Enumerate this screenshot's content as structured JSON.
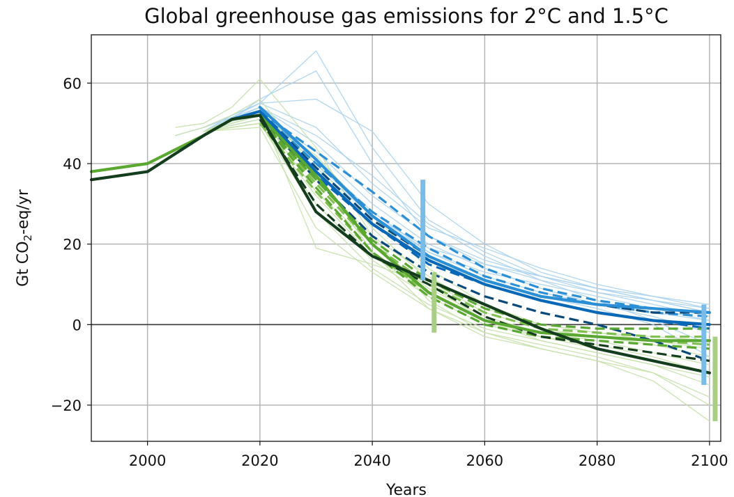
{
  "chart_data": {
    "type": "line",
    "title": "Global greenhouse gas emissions for 2°C and 1.5°C",
    "xlabel": "Years",
    "ylabel_main": "Gt CO",
    "ylabel_sub": "2",
    "ylabel_tail": "-eq/yr",
    "xlim": [
      1990,
      2102
    ],
    "ylim": [
      -29,
      72
    ],
    "xticks": [
      2000,
      2020,
      2040,
      2060,
      2080,
      2100
    ],
    "yticks": [
      -20,
      0,
      20,
      40,
      60
    ],
    "ytick_labels": [
      "−20",
      "0",
      "20",
      "40",
      "60"
    ],
    "grid": true,
    "zero_line": true,
    "colors": {
      "light_blue": "#a9d2f0",
      "mid_blue": "#2b8fd6",
      "dark_blue": "#0868b8",
      "navy": "#0a4a7a",
      "light_green": "#c5e0a8",
      "mid_green": "#7fbf4f",
      "green": "#5aa832",
      "dark_green": "#143d1e",
      "range_blue": "#79bce8",
      "range_green": "#a8cf84"
    },
    "series": [
      {
        "style": "thin",
        "color": "light_blue",
        "x": [
          2005,
          2010,
          2015,
          2020,
          2030,
          2040,
          2050,
          2060,
          2070,
          2080,
          2090,
          2100
        ],
        "y": [
          47,
          49,
          52,
          55,
          68,
          44,
          26,
          18,
          12,
          8,
          5,
          2
        ]
      },
      {
        "style": "thin",
        "color": "light_blue",
        "x": [
          2010,
          2015,
          2020,
          2030,
          2040,
          2050,
          2060,
          2070,
          2080,
          2090,
          2100
        ],
        "y": [
          48,
          51,
          56,
          63,
          40,
          22,
          15,
          11,
          8,
          6,
          4
        ]
      },
      {
        "style": "thin",
        "color": "light_blue",
        "x": [
          2010,
          2015,
          2020,
          2030,
          2040,
          2050,
          2060,
          2070,
          2080,
          2090,
          2100
        ],
        "y": [
          48,
          52,
          55,
          56,
          48,
          30,
          20,
          13,
          9,
          6,
          3
        ]
      },
      {
        "style": "thin",
        "color": "light_blue",
        "x": [
          2010,
          2020,
          2030,
          2040,
          2050,
          2060,
          2070,
          2080,
          2090,
          2100
        ],
        "y": [
          49,
          54,
          45,
          32,
          22,
          16,
          12,
          9,
          6,
          3
        ]
      },
      {
        "style": "thin",
        "color": "light_blue",
        "x": [
          2010,
          2020,
          2030,
          2040,
          2050,
          2060,
          2070,
          2080,
          2090,
          2100
        ],
        "y": [
          48,
          53,
          41,
          28,
          18,
          13,
          10,
          7,
          4,
          1
        ]
      },
      {
        "style": "thin",
        "color": "light_blue",
        "x": [
          2010,
          2020,
          2030,
          2040,
          2050,
          2060,
          2070,
          2080,
          2090,
          2100
        ],
        "y": [
          48,
          52,
          43,
          30,
          20,
          14,
          9,
          5,
          2,
          -2
        ]
      },
      {
        "style": "thin",
        "color": "light_blue",
        "x": [
          2010,
          2020,
          2030,
          2040,
          2050,
          2060,
          2070,
          2080,
          2090,
          2100
        ],
        "y": [
          48,
          54,
          47,
          37,
          25,
          17,
          11,
          6,
          1,
          -5
        ]
      },
      {
        "style": "thin",
        "color": "light_blue",
        "x": [
          2010,
          2020,
          2030,
          2040,
          2050,
          2060,
          2070,
          2080,
          2090,
          2100
        ],
        "y": [
          48,
          53,
          40,
          27,
          19,
          15,
          12,
          9,
          7,
          5
        ]
      },
      {
        "style": "thin",
        "color": "light_blue",
        "x": [
          2010,
          2020,
          2030,
          2040,
          2050,
          2060,
          2070,
          2080,
          2090,
          2100
        ],
        "y": [
          48,
          52,
          38,
          25,
          16,
          11,
          7,
          4,
          0,
          -8
        ]
      },
      {
        "style": "thin",
        "color": "light_blue",
        "x": [
          2010,
          2020,
          2030,
          2040,
          2050,
          2060,
          2070,
          2080,
          2090,
          2100
        ],
        "y": [
          48,
          55,
          49,
          35,
          24,
          19,
          14,
          10,
          7,
          4
        ]
      },
      {
        "style": "thin",
        "color": "light_blue",
        "x": [
          2010,
          2020,
          2030,
          2040,
          2050,
          2060,
          2070,
          2080,
          2090,
          2100
        ],
        "y": [
          48,
          51,
          39,
          27,
          18,
          12,
          8,
          5,
          3,
          1
        ]
      },
      {
        "style": "thin",
        "color": "light_green",
        "x": [
          2005,
          2010,
          2015,
          2020,
          2030,
          2040,
          2050,
          2060,
          2070,
          2080,
          2090,
          2100
        ],
        "y": [
          49,
          50,
          54,
          61,
          44,
          22,
          6,
          -2,
          -5,
          -8,
          -12,
          -18
        ]
      },
      {
        "style": "thin",
        "color": "light_green",
        "x": [
          2005,
          2010,
          2015,
          2020,
          2030,
          2040,
          2050,
          2060,
          2070,
          2080,
          2090,
          2100
        ],
        "y": [
          47,
          49,
          52,
          56,
          38,
          18,
          4,
          -3,
          -6,
          -9,
          -14,
          -24
        ]
      },
      {
        "style": "thin",
        "color": "light_green",
        "x": [
          2010,
          2015,
          2020,
          2030,
          2040,
          2050,
          2060,
          2070,
          2080,
          2090,
          2100
        ],
        "y": [
          48,
          51,
          53,
          19,
          15,
          10,
          1,
          -3,
          -6,
          -9,
          -12
        ]
      },
      {
        "style": "thin",
        "color": "light_green",
        "x": [
          2010,
          2020,
          2030,
          2040,
          2050,
          2060,
          2070,
          2080,
          2090,
          2100
        ],
        "y": [
          48,
          50,
          28,
          14,
          5,
          -1,
          -4,
          -7,
          -10,
          -15
        ]
      },
      {
        "style": "thin",
        "color": "light_green",
        "x": [
          2010,
          2020,
          2030,
          2040,
          2050,
          2060,
          2070,
          2080,
          2090,
          2100
        ],
        "y": [
          48,
          52,
          33,
          20,
          9,
          2,
          -2,
          -4,
          -7,
          -10
        ]
      },
      {
        "style": "thin",
        "color": "light_green",
        "x": [
          2010,
          2020,
          2030,
          2040,
          2050,
          2060,
          2070,
          2080,
          2090,
          2100
        ],
        "y": [
          48,
          51,
          36,
          22,
          12,
          4,
          0,
          -2,
          -4,
          -6
        ]
      },
      {
        "style": "thin",
        "color": "light_green",
        "x": [
          2010,
          2020,
          2030,
          2040,
          2050,
          2060,
          2070,
          2080,
          2090,
          2100
        ],
        "y": [
          48,
          50,
          30,
          16,
          7,
          0,
          -3,
          -5,
          -8,
          -12
        ]
      },
      {
        "style": "thin",
        "color": "light_green",
        "x": [
          2010,
          2020,
          2030,
          2040,
          2050,
          2060,
          2070,
          2080,
          2090,
          2100
        ],
        "y": [
          48,
          53,
          40,
          24,
          11,
          3,
          -1,
          -3,
          -5,
          -8
        ]
      },
      {
        "style": "thin",
        "color": "light_green",
        "x": [
          2010,
          2020,
          2030,
          2040,
          2050,
          2060,
          2070,
          2080,
          2090,
          2100
        ],
        "y": [
          48,
          49,
          24,
          13,
          4,
          -2,
          -6,
          -9,
          -12,
          -20
        ]
      },
      {
        "style": "thin",
        "color": "light_green",
        "x": [
          2010,
          2020,
          2030,
          2040,
          2050,
          2060,
          2070,
          2080,
          2090,
          2100
        ],
        "y": [
          48,
          52,
          42,
          27,
          14,
          5,
          0,
          -2,
          -3,
          -4
        ]
      },
      {
        "style": "thin",
        "color": "light_green",
        "x": [
          2010,
          2020,
          2030,
          2040,
          2050,
          2060,
          2070,
          2080,
          2090,
          2100
        ],
        "y": [
          48,
          50,
          32,
          17,
          8,
          1,
          -4,
          -7,
          -10,
          -13
        ]
      },
      {
        "style": "dashed",
        "color": "mid_blue",
        "x": [
          2020,
          2030,
          2040,
          2050,
          2060,
          2070,
          2080,
          2090,
          2100
        ],
        "y": [
          53,
          43,
          33,
          22,
          14,
          9,
          6,
          4,
          3
        ]
      },
      {
        "style": "dashed",
        "color": "mid_blue",
        "x": [
          2020,
          2030,
          2040,
          2050,
          2060,
          2070,
          2080,
          2090,
          2100
        ],
        "y": [
          53,
          40,
          28,
          19,
          12,
          8,
          5,
          3,
          2
        ]
      },
      {
        "style": "dashed",
        "color": "dark_blue",
        "x": [
          2020,
          2030,
          2040,
          2050,
          2060,
          2070,
          2080,
          2090,
          2100
        ],
        "y": [
          52,
          37,
          25,
          15,
          10,
          6,
          3,
          1,
          -1
        ]
      },
      {
        "style": "dashed",
        "color": "navy",
        "x": [
          2020,
          2030,
          2040,
          2050,
          2060,
          2070,
          2080,
          2090,
          2100
        ],
        "y": [
          52,
          36,
          22,
          13,
          7,
          3,
          0,
          -4,
          -9
        ]
      },
      {
        "style": "dashed",
        "color": "navy",
        "x": [
          2020,
          2030,
          2040,
          2050,
          2060,
          2070,
          2080,
          2090,
          2100
        ],
        "y": [
          53,
          39,
          26,
          17,
          11,
          7,
          5,
          3,
          3
        ]
      },
      {
        "style": "dashed",
        "color": "mid_green",
        "x": [
          2020,
          2030,
          2040,
          2050,
          2060,
          2070,
          2080,
          2090,
          2100
        ],
        "y": [
          51,
          35,
          20,
          10,
          3,
          -1,
          -2,
          -3,
          -3
        ]
      },
      {
        "style": "dashed",
        "color": "mid_green",
        "x": [
          2020,
          2030,
          2040,
          2050,
          2060,
          2070,
          2080,
          2090,
          2100
        ],
        "y": [
          50,
          33,
          18,
          8,
          1,
          -2,
          -3,
          -4,
          -5
        ]
      },
      {
        "style": "dashed",
        "color": "green",
        "x": [
          2020,
          2030,
          2040,
          2050,
          2060,
          2070,
          2080,
          2090,
          2100
        ],
        "y": [
          51,
          34,
          18,
          7,
          0,
          -3,
          -4,
          -5,
          -6
        ]
      },
      {
        "style": "dashed",
        "color": "green",
        "x": [
          2020,
          2030,
          2040,
          2050,
          2060,
          2070,
          2080,
          2090,
          2100
        ],
        "y": [
          51,
          36,
          21,
          11,
          4,
          0,
          -1,
          -1,
          -1
        ]
      },
      {
        "style": "dashed",
        "color": "dark_green",
        "x": [
          2020,
          2030,
          2040,
          2050,
          2060,
          2070,
          2080,
          2090,
          2100
        ],
        "y": [
          51,
          30,
          17,
          10,
          2,
          -3,
          -5,
          -7,
          -9
        ]
      },
      {
        "style": "thick",
        "color": "mid_blue",
        "x": [
          2020,
          2030,
          2040,
          2050,
          2060,
          2070,
          2080,
          2090,
          2100
        ],
        "y": [
          54,
          41,
          27,
          17,
          11,
          7,
          5,
          4,
          3
        ]
      },
      {
        "style": "thick",
        "color": "dark_blue",
        "x": [
          2015,
          2020,
          2030,
          2040,
          2050,
          2060,
          2070,
          2080,
          2090,
          2100
        ],
        "y": [
          51,
          53,
          38,
          25,
          16,
          10,
          6,
          3,
          1,
          0
        ]
      },
      {
        "style": "thick",
        "color": "green",
        "x": [
          1990,
          2000,
          2010,
          2015,
          2020,
          2030,
          2040,
          2050,
          2060,
          2070,
          2080,
          2090,
          2100
        ],
        "y": [
          38,
          40,
          47,
          51,
          52,
          37,
          20,
          8,
          1,
          -2,
          -3,
          -4,
          -4
        ]
      },
      {
        "style": "thick",
        "color": "dark_green",
        "x": [
          1990,
          2000,
          2010,
          2015,
          2020,
          2030,
          2040,
          2050,
          2060,
          2070,
          2080,
          2090,
          2100
        ],
        "y": [
          36,
          38,
          47,
          51,
          52,
          28,
          17,
          11,
          5,
          -1,
          -6,
          -9,
          -12
        ]
      }
    ],
    "range_bars": [
      {
        "color": "range_blue",
        "x": 2049,
        "y0": 11,
        "y1": 36
      },
      {
        "color": "range_green",
        "x": 2051,
        "y0": -2,
        "y1": 13
      },
      {
        "color": "range_blue",
        "x": 2099,
        "y0": -15,
        "y1": 5
      },
      {
        "color": "range_green",
        "x": 2101,
        "y0": -24,
        "y1": -3
      }
    ]
  }
}
